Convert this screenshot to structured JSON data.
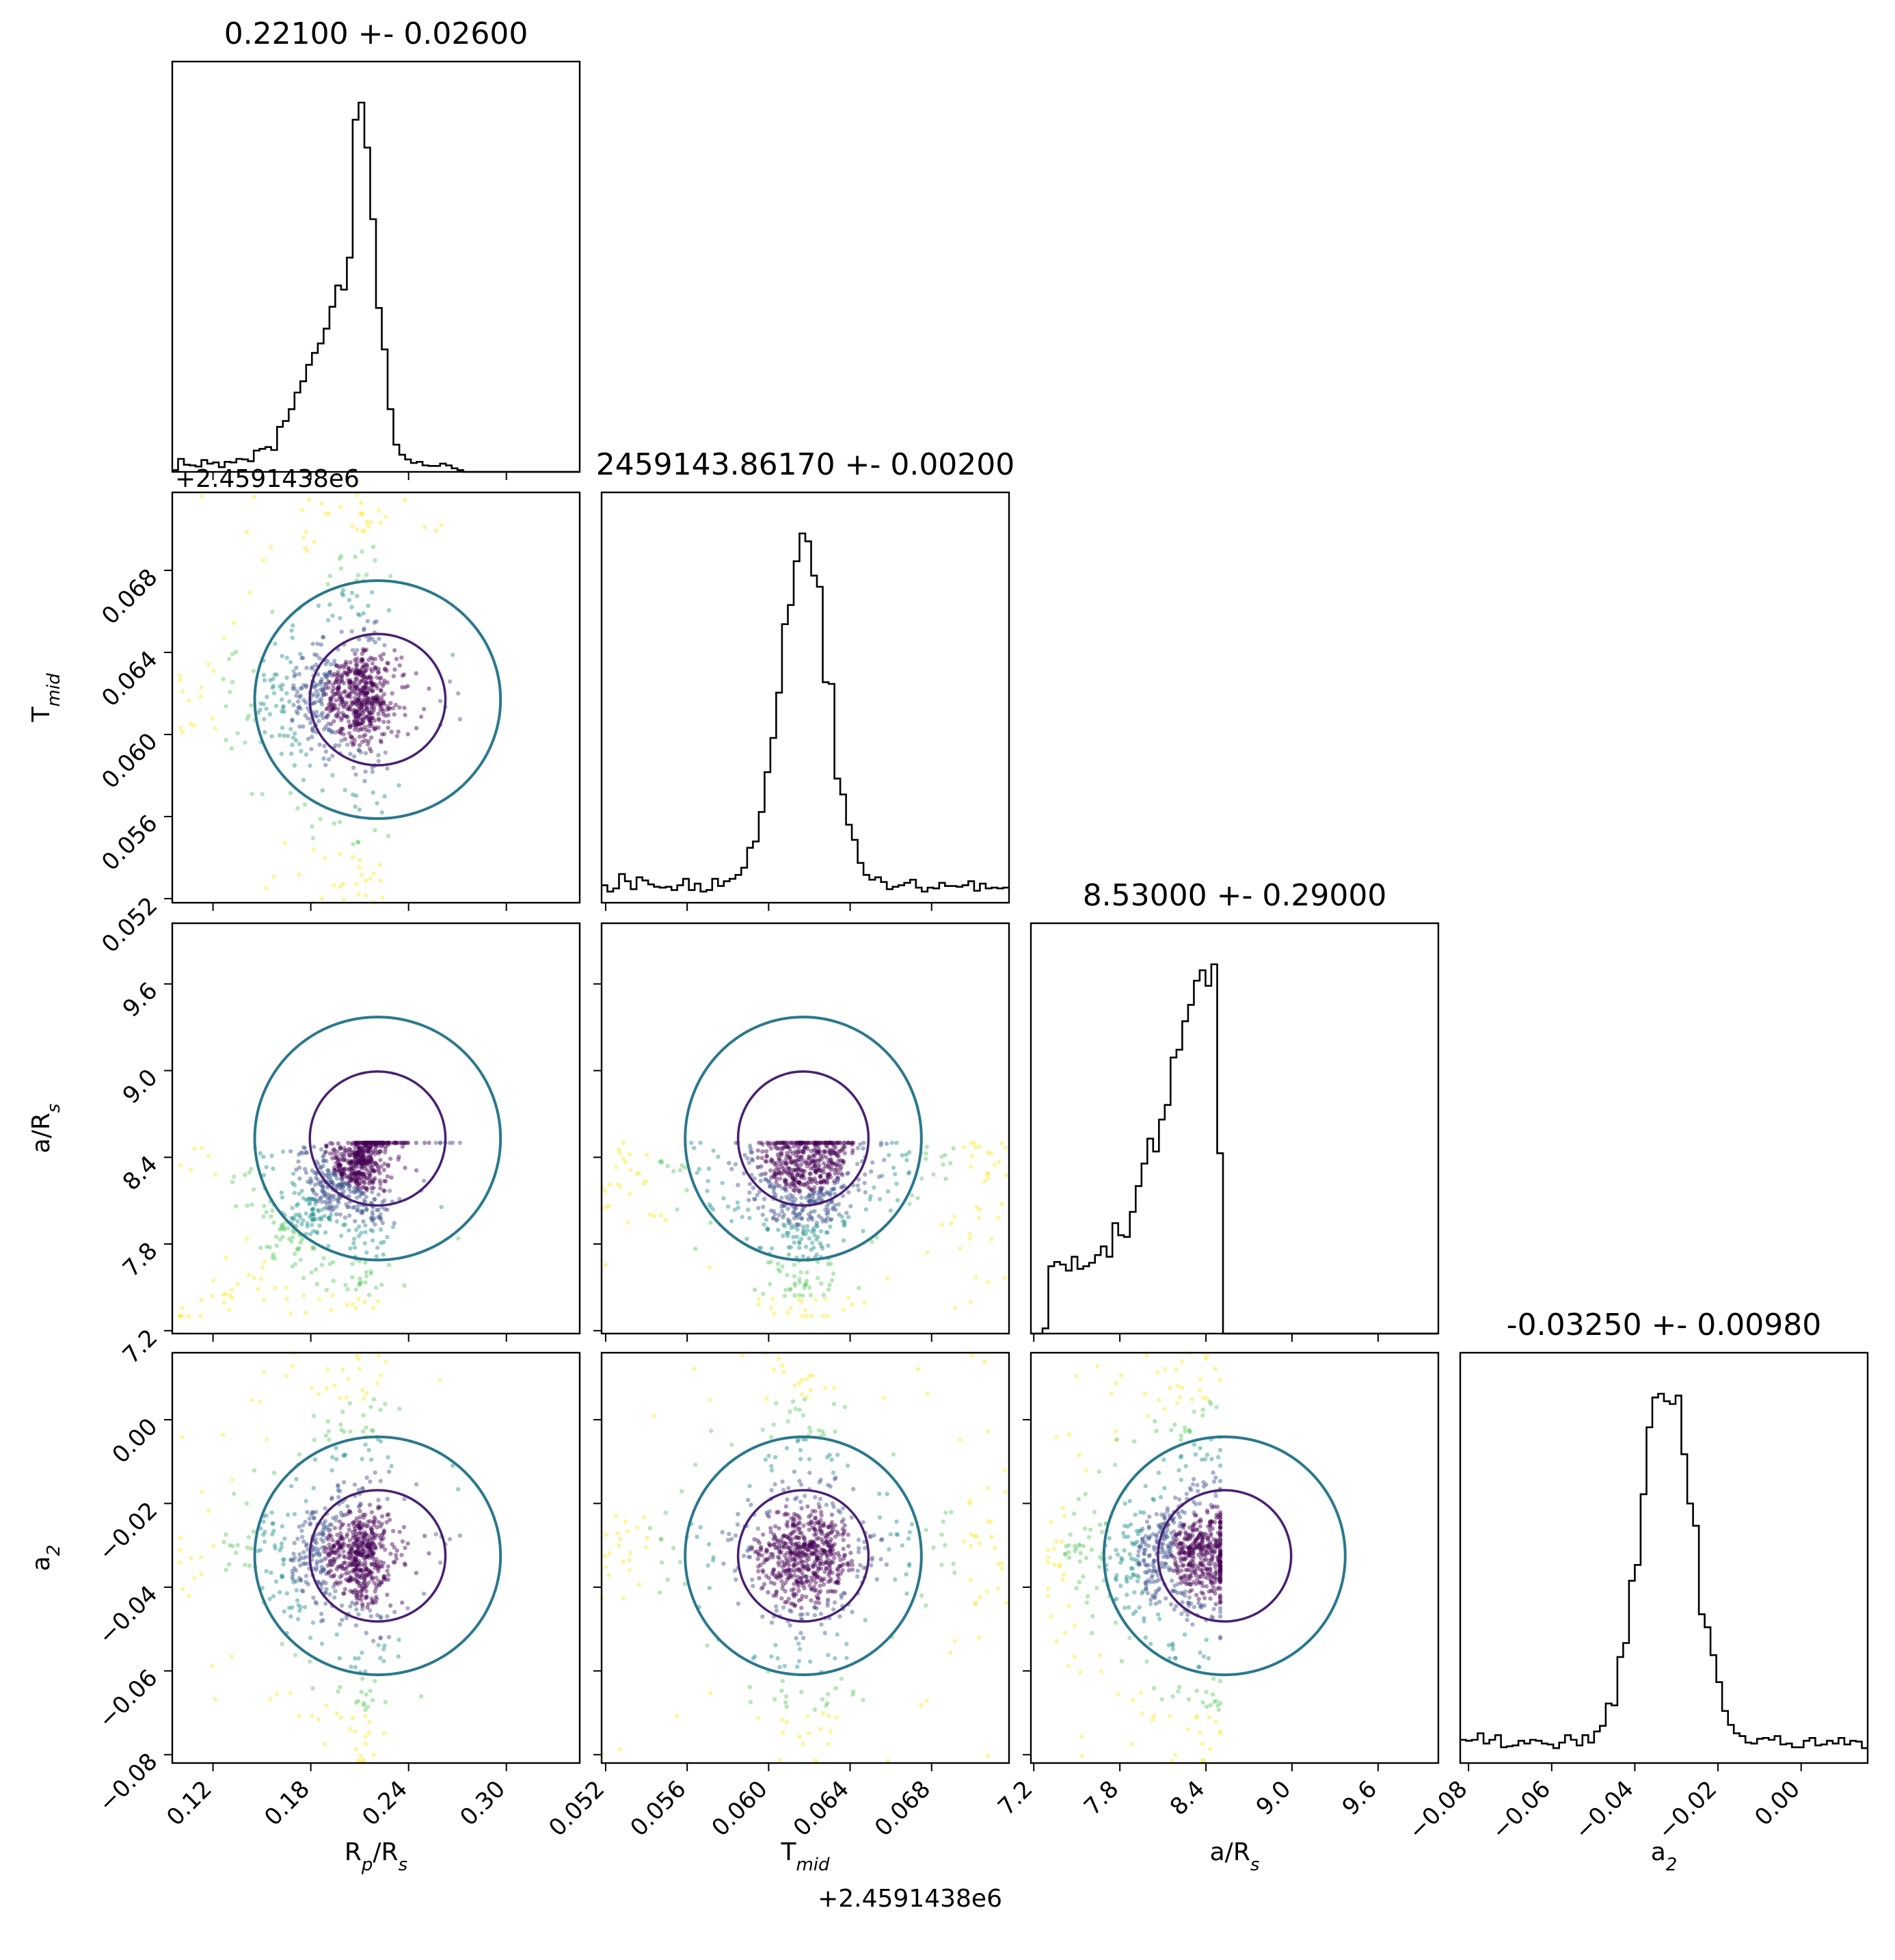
{
  "chart_data": {
    "type": "scatter",
    "kind": "corner",
    "parameters": [
      {
        "key": "rp",
        "label_main": "R",
        "label_sub": "p",
        "label_tail": "/R",
        "label_sub2": "s",
        "title": "0.22100 +- 0.02600",
        "range": [
          0.095,
          0.345
        ],
        "ticks": [
          "0.12",
          "0.18",
          "0.24",
          "0.30"
        ],
        "tick_values": [
          0.12,
          0.18,
          0.24,
          0.3
        ],
        "center": 0.221,
        "sigma": 0.026,
        "hist_peak": 0.207
      },
      {
        "key": "tmid",
        "label_main": "T",
        "label_sub": "mid",
        "label_tail": "",
        "label_sub2": "",
        "title": "2459143.86170 +- 0.00200",
        "offset_text": "+2.4591438e6",
        "range": [
          0.0518,
          0.0718
        ],
        "ticks": [
          "0.052",
          "0.056",
          "0.060",
          "0.064",
          "0.068"
        ],
        "tick_values": [
          0.052,
          0.056,
          0.06,
          0.064,
          0.068
        ],
        "center": 0.0617,
        "sigma": 0.002,
        "hist_peak": 0.0617
      },
      {
        "key": "ars",
        "label_main": "a/R",
        "label_sub": "s",
        "label_tail": "",
        "label_sub2": "",
        "title": "8.53000 +- 0.29000",
        "range": [
          7.18,
          10.02
        ],
        "ticks": [
          "7.2",
          "7.8",
          "8.4",
          "9.0",
          "9.6"
        ],
        "tick_values": [
          7.2,
          7.8,
          8.4,
          9.0,
          9.6
        ],
        "center": 8.53,
        "sigma": 0.29,
        "hist_peak": 8.47
      },
      {
        "key": "a2",
        "label_main": "a",
        "label_sub": "2",
        "label_tail": "",
        "label_sub2": "",
        "title": "-0.03250 +- 0.00980",
        "range": [
          -0.082,
          0.016
        ],
        "ticks": [
          "−0.08",
          "−0.06",
          "−0.04",
          "−0.02",
          "0.00"
        ],
        "tick_values": [
          -0.08,
          -0.06,
          -0.04,
          -0.02,
          0.0
        ],
        "center": -0.0325,
        "sigma": 0.0098,
        "hist_peak": -0.0325
      }
    ],
    "scatter_colormap": [
      "#440154",
      "#3b528b",
      "#21918c",
      "#5ec962",
      "#fde725"
    ],
    "contour_colors": {
      "inner": "#482173",
      "middle": "#2a788e",
      "outer": "#fde725"
    },
    "histogram_color": "#000000",
    "grid": false,
    "legend": "none"
  }
}
